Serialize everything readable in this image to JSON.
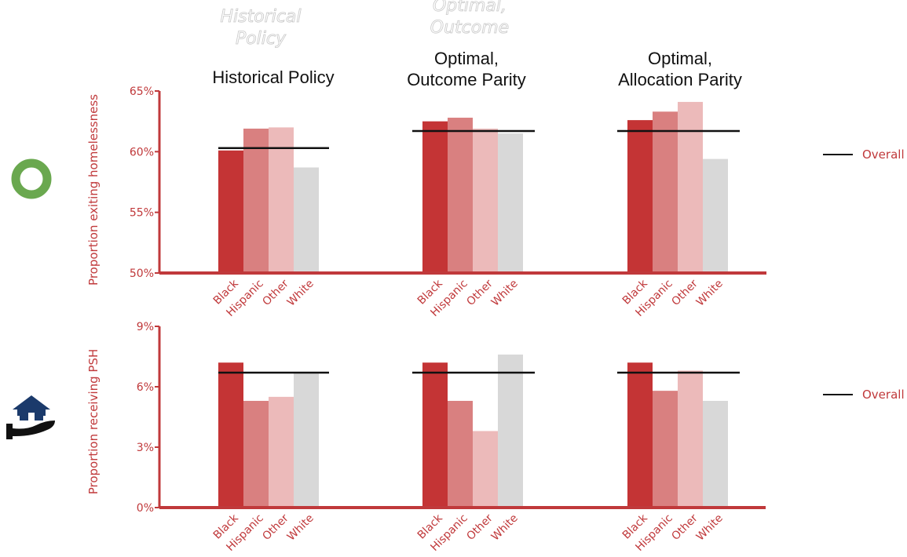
{
  "colors": {
    "axis": "#c0393b",
    "overall_line": "#111111",
    "series": [
      "#c43435",
      "#d98080",
      "#ecbaba",
      "#d8d8d8"
    ],
    "outcome_icon": "#6aa84f",
    "psh_icon": "#1b3a6b"
  },
  "icons": {
    "outcome": "ring-icon",
    "psh": "house-in-hand-icon"
  },
  "ghost_titles": [
    "Historical Policy",
    "Optimal, Outcome"
  ],
  "policy_titles": [
    [
      "Historical Policy"
    ],
    [
      "Optimal,",
      "Outcome Parity"
    ],
    [
      "Optimal,",
      "Allocation Parity"
    ]
  ],
  "legend": {
    "label": "Overall"
  },
  "chart_data": [
    {
      "type": "bar",
      "ylabel": "Proportion exiting homelessness",
      "ylim": [
        50,
        65
      ],
      "yticks": [
        "50%",
        "55%",
        "60%",
        "65%"
      ],
      "ytick_values": [
        50,
        55,
        60,
        65
      ],
      "categories": [
        "Black",
        "Hispanic",
        "Other",
        "White"
      ],
      "groups": [
        {
          "policy": "Historical Policy",
          "values": [
            60.1,
            61.9,
            62.0,
            58.7
          ],
          "overall": 60.3
        },
        {
          "policy": "Optimal, Outcome Parity",
          "values": [
            62.5,
            62.8,
            61.9,
            61.5
          ],
          "overall": 61.7
        },
        {
          "policy": "Optimal, Allocation Parity",
          "values": [
            62.6,
            63.3,
            64.1,
            59.4
          ],
          "overall": 61.7
        }
      ],
      "legend": "Overall",
      "grid": false
    },
    {
      "type": "bar",
      "ylabel": "Proportion receiving PSH",
      "ylim": [
        0,
        9
      ],
      "yticks": [
        "0%",
        "3%",
        "6%",
        "9%"
      ],
      "ytick_values": [
        0,
        3,
        6,
        9
      ],
      "categories": [
        "Black",
        "Hispanic",
        "Other",
        "White"
      ],
      "groups": [
        {
          "policy": "Historical Policy",
          "values": [
            7.2,
            5.3,
            5.5,
            6.7
          ],
          "overall": 6.7
        },
        {
          "policy": "Optimal, Outcome Parity",
          "values": [
            7.2,
            5.3,
            3.8,
            7.6
          ],
          "overall": 6.7
        },
        {
          "policy": "Optimal, Allocation Parity",
          "values": [
            7.2,
            5.8,
            6.8,
            5.3
          ],
          "overall": 6.7
        }
      ],
      "legend": "Overall",
      "grid": false
    }
  ]
}
